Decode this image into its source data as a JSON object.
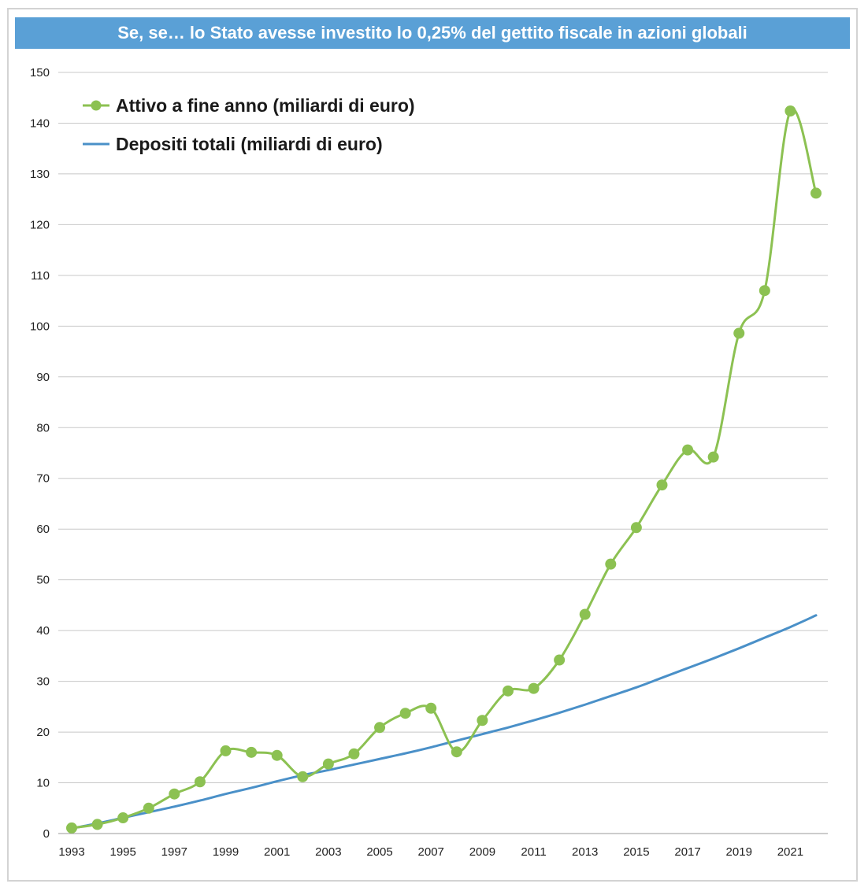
{
  "title": "Se, se… lo Stato avesse investito lo 0,25% del gettito fiscale in azioni globali",
  "colors": {
    "header": "#5aa0d6",
    "attivo": "#8cc152",
    "depositi": "#4a90c8",
    "grid": "#c8c8c8"
  },
  "chart_data": {
    "type": "line",
    "x": [
      1993,
      1994,
      1995,
      1996,
      1997,
      1998,
      1999,
      2000,
      2001,
      2002,
      2003,
      2004,
      2005,
      2006,
      2007,
      2008,
      2009,
      2010,
      2011,
      2012,
      2013,
      2014,
      2015,
      2016,
      2017,
      2018,
      2019,
      2020,
      2021,
      2022
    ],
    "x_tick_labels": [
      "1993",
      "1995",
      "1997",
      "1999",
      "2001",
      "2003",
      "2005",
      "2007",
      "2009",
      "2011",
      "2013",
      "2015",
      "2017",
      "2019",
      "2021"
    ],
    "y_tick_labels": [
      "0",
      "10",
      "20",
      "30",
      "40",
      "50",
      "60",
      "70",
      "80",
      "90",
      "100",
      "110",
      "120",
      "130",
      "140",
      "150"
    ],
    "ylim": [
      0,
      150
    ],
    "grid": true,
    "legend_position": "top-left",
    "series": [
      {
        "name": "Attivo a fine anno (miliardi di euro)",
        "style": "line-with-markers",
        "color": "#8cc152",
        "values": [
          1.1,
          1.8,
          3.1,
          5.0,
          7.8,
          10.2,
          16.3,
          16.0,
          15.4,
          11.2,
          13.7,
          15.7,
          20.9,
          23.7,
          24.7,
          16.1,
          22.3,
          28.1,
          28.6,
          34.2,
          43.2,
          53.1,
          60.3,
          68.7,
          75.6,
          74.2,
          98.6,
          107.0,
          142.4,
          126.2
        ]
      },
      {
        "name": "Depositi totali (miliardi di euro)",
        "style": "line",
        "color": "#4a90c8",
        "values": [
          1.0,
          2.0,
          3.1,
          4.2,
          5.3,
          6.5,
          7.8,
          9.0,
          10.3,
          11.5,
          12.5,
          13.6,
          14.7,
          15.8,
          17.0,
          18.3,
          19.6,
          20.9,
          22.3,
          23.8,
          25.4,
          27.1,
          28.8,
          30.7,
          32.6,
          34.5,
          36.5,
          38.6,
          40.7,
          43.0
        ]
      }
    ]
  }
}
